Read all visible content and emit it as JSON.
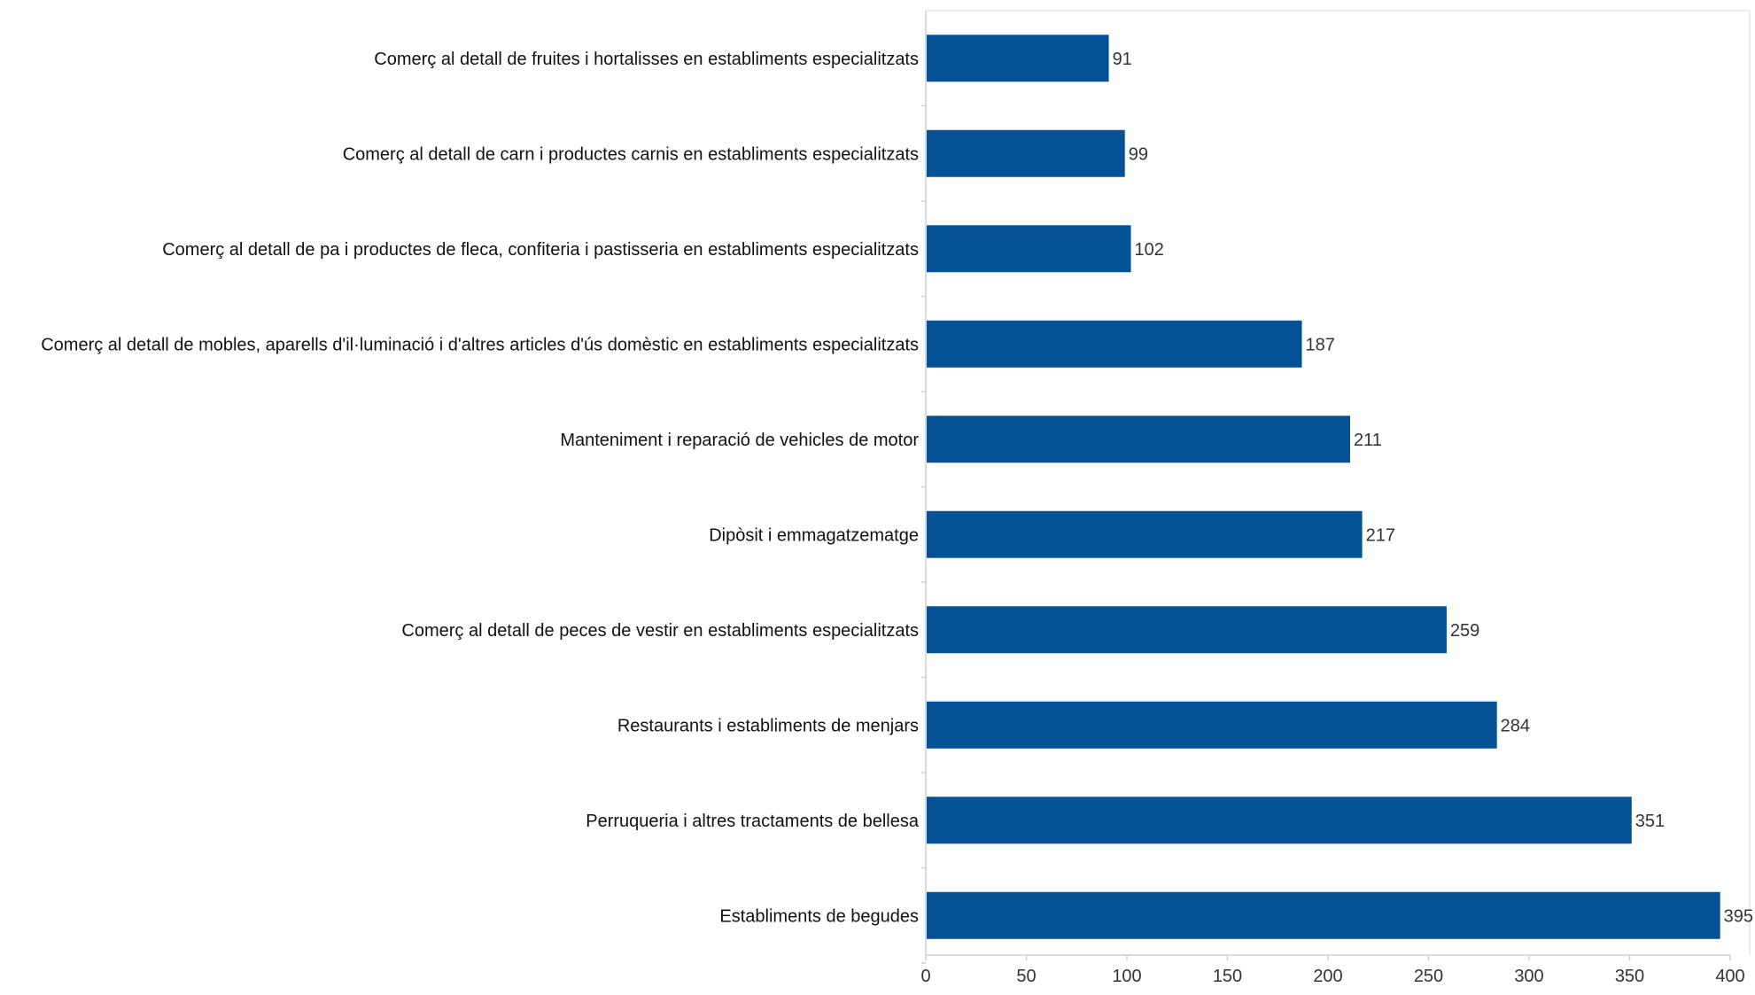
{
  "chart_data": {
    "type": "bar",
    "orientation": "horizontal",
    "categories": [
      "Comerç al detall de fruites i hortalisses en establiments especialitzats",
      "Comerç al detall de carn i productes carnis en establiments especialitzats",
      "Comerç al detall de pa i productes de fleca, confiteria i pastisseria en establiments especialitzats",
      "Comerç al detall de mobles, aparells d'il·luminació i d'altres articles d'ús domèstic en establiments especialitzats",
      "Manteniment i reparació de vehicles de motor",
      "Dipòsit i emmagatzematge",
      "Comerç al detall de peces de vestir en establiments especialitzats",
      "Restaurants i establiments de menjars",
      "Perruqueria i altres tractaments de bellesa",
      "Establiments de begudes"
    ],
    "values": [
      91,
      99,
      102,
      187,
      211,
      217,
      259,
      284,
      351,
      395
    ],
    "value_labels": [
      "91",
      "99",
      "102",
      "187",
      "211",
      "217",
      "259",
      "284",
      "351",
      "395"
    ],
    "xlim": [
      0,
      400
    ],
    "x_ticks": [
      0,
      50,
      100,
      150,
      200,
      250,
      300,
      350,
      400
    ],
    "x_tick_labels": [
      "0",
      "50",
      "100",
      "150",
      "200",
      "250",
      "300",
      "350",
      "400"
    ],
    "bar_color": "#045196",
    "grid": false,
    "legend": "none",
    "title": "",
    "xlabel": "",
    "ylabel": ""
  }
}
